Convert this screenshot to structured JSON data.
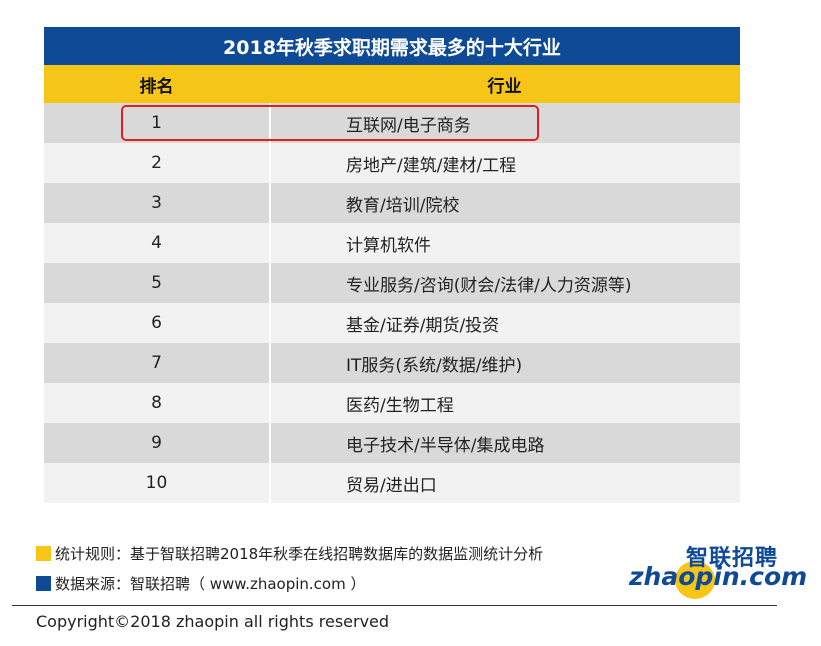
{
  "table": {
    "title": "2018年秋季求职期需求最多的十大行业",
    "headers": {
      "rank": "排名",
      "industry": "行业"
    },
    "rows": [
      {
        "rank": "1",
        "industry": "互联网/电子商务"
      },
      {
        "rank": "2",
        "industry": "房地产/建筑/建材/工程"
      },
      {
        "rank": "3",
        "industry": "教育/培训/院校"
      },
      {
        "rank": "4",
        "industry": "计算机软件"
      },
      {
        "rank": "5",
        "industry": "专业服务/咨询(财会/法律/人力资源等)"
      },
      {
        "rank": "6",
        "industry": "基金/证券/期货/投资"
      },
      {
        "rank": "7",
        "industry": "IT服务(系统/数据/维护)"
      },
      {
        "rank": "8",
        "industry": "医药/生物工程"
      },
      {
        "rank": "9",
        "industry": "电子技术/半导体/集成电路"
      },
      {
        "rank": "10",
        "industry": "贸易/进出口"
      }
    ],
    "highlighted_rank": "1",
    "colors": {
      "title_bg": "#0f4a97",
      "header_bg": "#f5c518",
      "highlight": "#e02020"
    }
  },
  "notes": {
    "rule": "统计规则：基于智联招聘2018年秋季在线招聘数据库的数据监测统计分析",
    "source": "数据来源：智联招聘（ www.zhaopin.com ）",
    "rule_color": "#f5c518",
    "source_color": "#0f4a97"
  },
  "logo": {
    "cn": "智联招聘",
    "en": "zhaopin.com"
  },
  "copyright": "Copyright©2018 zhaopin all rights reserved"
}
